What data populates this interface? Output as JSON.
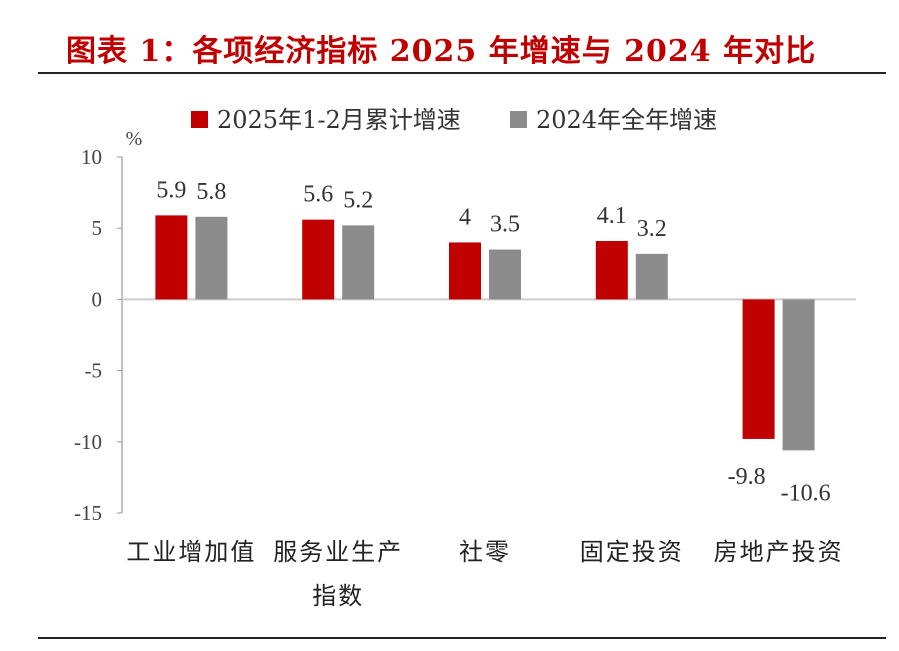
{
  "title": "图表 1：各项经济指标 2025 年增速与 2024 年对比",
  "chart_data": {
    "type": "bar",
    "unit": "%",
    "categories": [
      [
        "工业增加值"
      ],
      [
        "服务业生产",
        "指数"
      ],
      [
        "社零"
      ],
      [
        "固定投资"
      ],
      [
        "房地产投资"
      ]
    ],
    "series": [
      {
        "name": "2025年1-2月累计增速",
        "color": "#c00000",
        "values": [
          5.9,
          5.6,
          4,
          4.1,
          -9.8
        ]
      },
      {
        "name": "2024年全年增速",
        "color": "#8c8c8c",
        "values": [
          5.8,
          5.2,
          3.5,
          3.2,
          -10.6
        ]
      }
    ],
    "data_labels": [
      [
        "5.9",
        "5.6",
        "4",
        "4.1",
        "-9.8"
      ],
      [
        "5.8",
        "5.2",
        "3.5",
        "3.2",
        "-10.6"
      ]
    ],
    "ylim": [
      -15,
      10
    ],
    "yticks": [
      10,
      5,
      0,
      -5,
      -10,
      -15
    ],
    "legend_position": "top",
    "grid": false
  }
}
